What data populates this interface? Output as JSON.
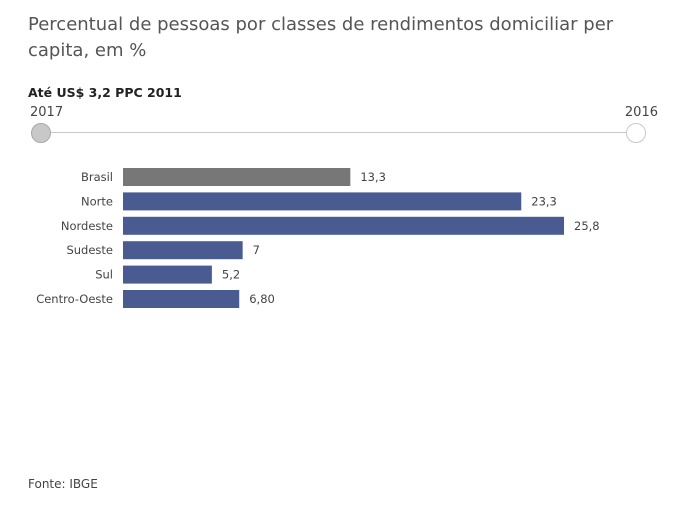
{
  "title": "Percentual de pessoas por classes de rendimentos domiciliar per capita, em %",
  "subtitle": "Até US$ 3,2 PPC 2011",
  "slider": {
    "start_label": "2017",
    "end_label": "2016"
  },
  "source": "Fonte: IBGE",
  "colors": {
    "highlight": "#777777",
    "bar": "#4a5b92"
  },
  "chart_data": {
    "type": "bar",
    "orientation": "horizontal",
    "categories": [
      "Brasil",
      "Norte",
      "Nordeste",
      "Sudeste",
      "Sul",
      "Centro-Oeste"
    ],
    "values": [
      13.3,
      23.3,
      25.8,
      7,
      5.2,
      6.8
    ],
    "value_labels": [
      "13,3",
      "23,3",
      "25,8",
      "7",
      "5,2",
      "6,80"
    ],
    "highlight_category": "Brasil",
    "xlim": [
      0,
      25.8
    ]
  }
}
